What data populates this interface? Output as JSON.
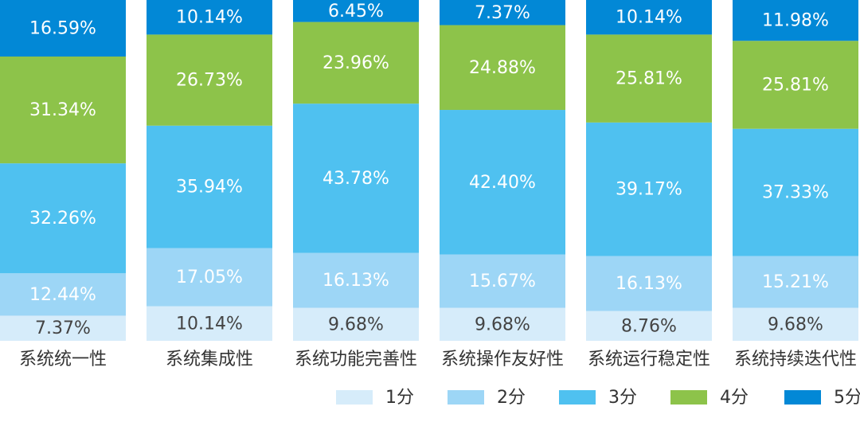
{
  "chart_data": {
    "type": "bar",
    "stacked": true,
    "categories": [
      "系统统一性",
      "系统集成性",
      "系统功能完善性",
      "系统操作友好性",
      "系统运行稳定性",
      "系统持续迭代性"
    ],
    "series": [
      {
        "name": "1分",
        "color": "#d6ecfa",
        "values": [
          7.37,
          10.14,
          9.68,
          9.68,
          8.76,
          9.68
        ]
      },
      {
        "name": "2分",
        "color": "#9dd6f6",
        "values": [
          12.44,
          17.05,
          16.13,
          15.67,
          16.13,
          15.21
        ]
      },
      {
        "name": "3分",
        "color": "#4fc1f0",
        "values": [
          32.26,
          35.94,
          43.78,
          42.4,
          39.17,
          37.33
        ]
      },
      {
        "name": "4分",
        "color": "#8dc34a",
        "values": [
          31.34,
          26.73,
          23.96,
          24.88,
          25.81,
          25.81
        ]
      },
      {
        "name": "5分",
        "color": "#0288d6",
        "values": [
          16.59,
          10.14,
          6.45,
          7.37,
          10.14,
          11.98
        ]
      }
    ],
    "labels": [
      [
        "7.37%",
        "10.14%",
        "9.68%",
        "9.68%",
        "8.76%",
        "9.68%"
      ],
      [
        "12.44%",
        "17.05%",
        "16.13%",
        "15.67%",
        "16.13%",
        "15.21%"
      ],
      [
        "32.26%",
        "35.94%",
        "43.78%",
        "42.40%",
        "39.17%",
        "37.33%"
      ],
      [
        "31.34%",
        "26.73%",
        "23.96%",
        "24.88%",
        "25.81%",
        "25.81%"
      ],
      [
        "16.59%",
        "10.14%",
        "6.45%",
        "7.37%",
        "10.14%",
        "11.98%"
      ]
    ],
    "ylim": [
      0,
      100
    ],
    "legend_position": "bottom-right",
    "grid": false
  }
}
